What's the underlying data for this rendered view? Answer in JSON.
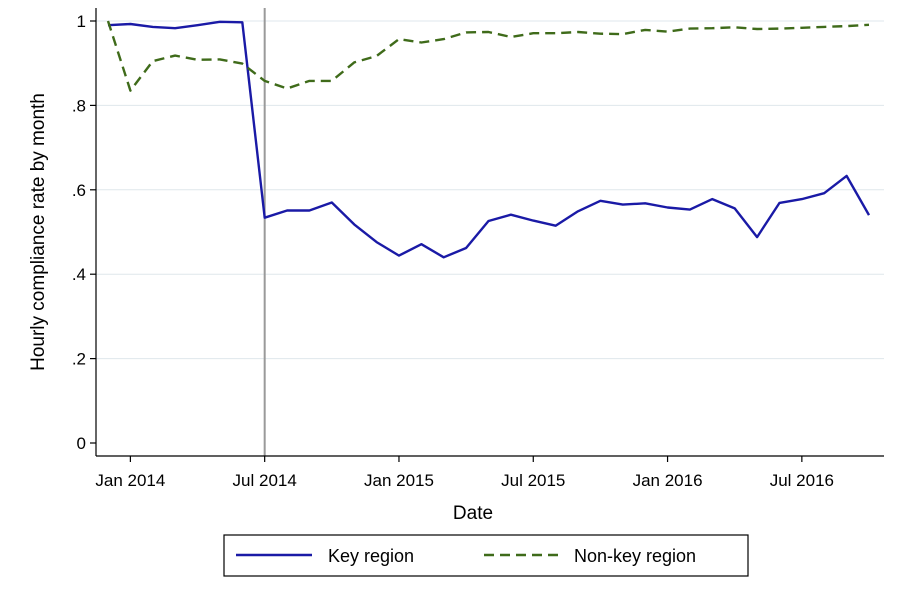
{
  "chart_data": {
    "type": "line",
    "xlabel": "Date",
    "ylabel": "Hourly compliance rate by month",
    "ylim": [
      0,
      1
    ],
    "y_ticks": [
      0,
      0.2,
      0.4,
      0.6,
      0.8,
      1
    ],
    "y_tick_labels": [
      "0",
      ".2",
      ".4",
      ".6",
      ".8",
      "1"
    ],
    "x_ticks": [
      "2014-01",
      "2014-07",
      "2015-01",
      "2015-07",
      "2016-01",
      "2016-07"
    ],
    "x_tick_labels": [
      "Jan 2014",
      "Jul 2014",
      "Jan 2015",
      "Jul 2015",
      "Jan 2016",
      "Jul 2016"
    ],
    "xlim": [
      "2013-12",
      "2016-10"
    ],
    "vertical_reference_line": "2014-07",
    "grid": "horizontal",
    "legend_position": "bottom",
    "x": [
      "2013-12",
      "2014-01",
      "2014-02",
      "2014-03",
      "2014-04",
      "2014-05",
      "2014-06",
      "2014-07",
      "2014-08",
      "2014-09",
      "2014-10",
      "2014-11",
      "2014-12",
      "2015-01",
      "2015-02",
      "2015-03",
      "2015-04",
      "2015-05",
      "2015-06",
      "2015-07",
      "2015-08",
      "2015-09",
      "2015-10",
      "2015-11",
      "2015-12",
      "2016-01",
      "2016-02",
      "2016-03",
      "2016-04",
      "2016-05",
      "2016-06",
      "2016-07",
      "2016-08",
      "2016-09",
      "2016-10"
    ],
    "series": [
      {
        "name": "Key region",
        "color": "#1a1aa6",
        "style": "solid",
        "values": [
          0.99,
          0.993,
          0.986,
          0.983,
          0.99,
          0.998,
          0.997,
          0.534,
          0.551,
          0.551,
          0.57,
          0.518,
          0.476,
          0.444,
          0.471,
          0.44,
          0.462,
          0.526,
          0.541,
          0.527,
          0.515,
          0.549,
          0.574,
          0.565,
          0.568,
          0.558,
          0.553,
          0.578,
          0.556,
          0.488,
          0.569,
          0.578,
          0.592,
          0.633,
          0.54
        ]
      },
      {
        "name": "Non-key region",
        "color": "#3f6b1a",
        "style": "dashed",
        "values": [
          1.0,
          0.835,
          0.905,
          0.918,
          0.908,
          0.909,
          0.899,
          0.858,
          0.84,
          0.858,
          0.858,
          0.902,
          0.917,
          0.957,
          0.949,
          0.957,
          0.973,
          0.974,
          0.962,
          0.971,
          0.971,
          0.974,
          0.97,
          0.969,
          0.979,
          0.975,
          0.982,
          0.983,
          0.985,
          0.981,
          0.982,
          0.984,
          0.986,
          0.988,
          0.991
        ]
      }
    ]
  }
}
